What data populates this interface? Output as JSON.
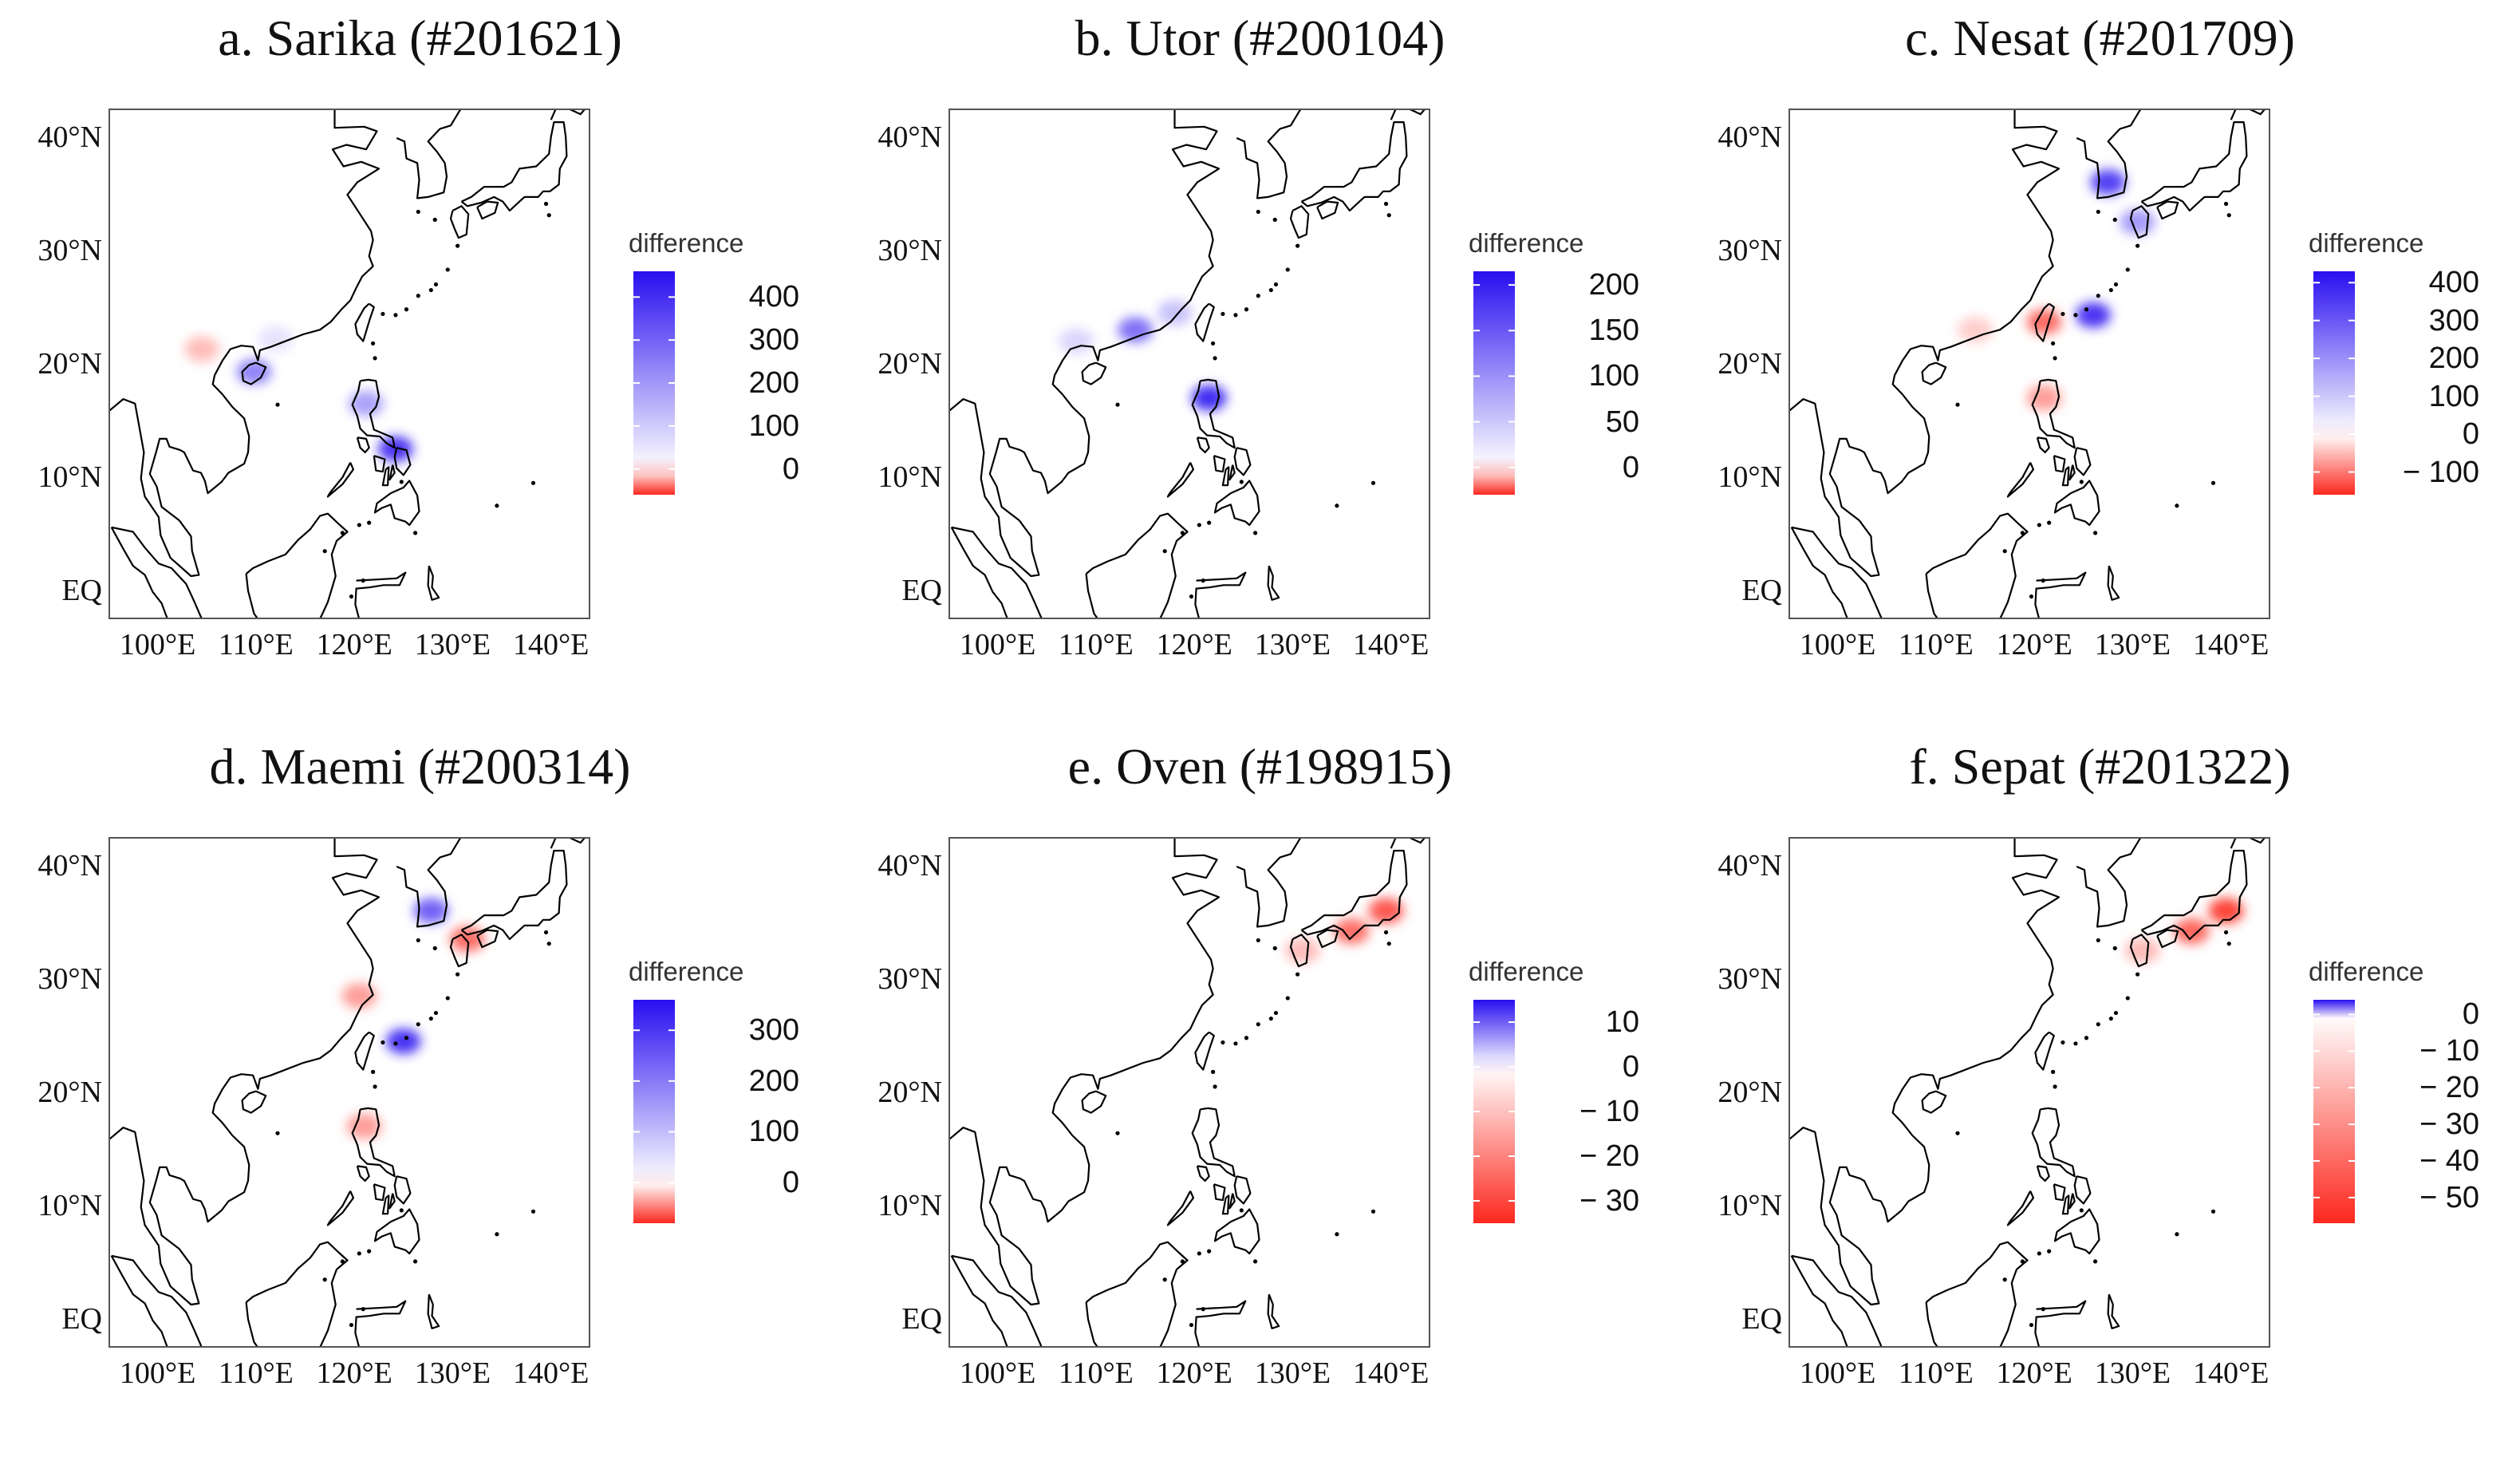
{
  "figure": {
    "panels": [
      {
        "title": "a. Sarika (#201621)",
        "lat_labels": [
          "40°N",
          "30°N",
          "20°N",
          "10°N",
          "EQ"
        ],
        "lon_labels": [
          "100°E",
          "110°E",
          "120°E",
          "130°E",
          "140°E"
        ],
        "legend": {
          "title": "difference",
          "ticks": [
            "400",
            "300",
            "200",
            "100",
            "0"
          ],
          "scale": {
            "min": -60,
            "max": 460
          },
          "tick_values": [
            400,
            300,
            200,
            100,
            0
          ]
        },
        "shading": [
          {
            "region": "south-china-coast",
            "lon": 112,
            "lat": 22.2,
            "value": 60
          },
          {
            "region": "hainan",
            "lon": 109.8,
            "lat": 19.3,
            "value": 260
          },
          {
            "region": "northern-vietnam",
            "lon": 104.5,
            "lat": 21.3,
            "value": -20
          },
          {
            "region": "luzon",
            "lon": 121.2,
            "lat": 16.5,
            "value": 200
          },
          {
            "region": "eastern-visayas",
            "lon": 124.2,
            "lat": 12.5,
            "value": 430
          }
        ]
      },
      {
        "title": "b. Utor (#200104)",
        "lat_labels": [
          "40°N",
          "30°N",
          "20°N",
          "10°N",
          "EQ"
        ],
        "lon_labels": [
          "100°E",
          "110°E",
          "120°E",
          "130°E",
          "140°E"
        ],
        "legend": {
          "title": "difference",
          "ticks": [
            "200",
            "150",
            "100",
            "50",
            "0"
          ],
          "scale": {
            "min": -30,
            "max": 215
          },
          "tick_values": [
            200,
            150,
            100,
            50,
            0
          ]
        },
        "shading": [
          {
            "region": "guangdong-coast",
            "lon": 114,
            "lat": 23,
            "value": 140
          },
          {
            "region": "guangxi-coast",
            "lon": 108,
            "lat": 22,
            "value": 40
          },
          {
            "region": "fujian-coast",
            "lon": 118,
            "lat": 24.5,
            "value": 60
          },
          {
            "region": "luzon",
            "lon": 121.5,
            "lat": 17,
            "value": 210
          }
        ]
      },
      {
        "title": "c. Nesat (#201709)",
        "lat_labels": [
          "40°N",
          "30°N",
          "20°N",
          "10°N",
          "EQ"
        ],
        "lon_labels": [
          "100°E",
          "110°E",
          "120°E",
          "130°E",
          "140°E"
        ],
        "legend": {
          "title": "difference",
          "ticks": [
            "400",
            "300",
            "200",
            "100",
            "0",
            "− 100"
          ],
          "scale": {
            "min": -160,
            "max": 430
          },
          "tick_values": [
            400,
            300,
            200,
            100,
            0,
            -100
          ]
        },
        "shading": [
          {
            "region": "korea",
            "lon": 127.5,
            "lat": 36,
            "value": 380
          },
          {
            "region": "kyushu",
            "lon": 130.5,
            "lat": 32.5,
            "value": 200
          },
          {
            "region": "china-coast",
            "lon": 114,
            "lat": 23,
            "value": -40
          },
          {
            "region": "taiwan",
            "lon": 121,
            "lat": 23.7,
            "value": -120
          },
          {
            "region": "luzon",
            "lon": 121,
            "lat": 17,
            "value": -80
          },
          {
            "region": "ryukyu",
            "lon": 126,
            "lat": 24.3,
            "value": 400
          }
        ]
      },
      {
        "title": "d. Maemi (#200314)",
        "lat_labels": [
          "40°N",
          "30°N",
          "20°N",
          "10°N",
          "EQ"
        ],
        "lon_labels": [
          "100°E",
          "110°E",
          "120°E",
          "130°E",
          "140°E"
        ],
        "legend": {
          "title": "difference",
          "ticks": [
            "300",
            "200",
            "100",
            "0"
          ],
          "scale": {
            "min": -80,
            "max": 360
          },
          "tick_values": [
            300,
            200,
            100,
            0
          ]
        },
        "shading": [
          {
            "region": "korea",
            "lon": 127.8,
            "lat": 36,
            "value": 260
          },
          {
            "region": "kyushu",
            "lon": 131.5,
            "lat": 33.5,
            "value": -60
          },
          {
            "region": "zhejiang-coast",
            "lon": 120.5,
            "lat": 28.5,
            "value": -40
          },
          {
            "region": "ryukyu",
            "lon": 125,
            "lat": 24.5,
            "value": 340
          },
          {
            "region": "luzon",
            "lon": 121,
            "lat": 17,
            "value": -40
          }
        ]
      },
      {
        "title": "e. Oven (#198915)",
        "lat_labels": [
          "40°N",
          "30°N",
          "20°N",
          "10°N",
          "EQ"
        ],
        "lon_labels": [
          "100°E",
          "110°E",
          "120°E",
          "130°E",
          "140°E"
        ],
        "legend": {
          "title": "difference",
          "ticks": [
            "10",
            "0",
            "− 10",
            "− 20",
            "− 30"
          ],
          "scale": {
            "min": -35,
            "max": 15
          },
          "tick_values": [
            10,
            0,
            -10,
            -20,
            -30
          ]
        },
        "shading": [
          {
            "region": "honshu-south",
            "lon": 136,
            "lat": 34.2,
            "value": -26
          },
          {
            "region": "honshu-east",
            "lon": 139.5,
            "lat": 36,
            "value": -30
          },
          {
            "region": "kyushu",
            "lon": 131,
            "lat": 32.5,
            "value": -12
          }
        ]
      },
      {
        "title": "f. Sepat (#201322)",
        "lat_labels": [
          "40°N",
          "30°N",
          "20°N",
          "10°N",
          "EQ"
        ],
        "lon_labels": [
          "100°E",
          "110°E",
          "120°E",
          "130°E",
          "140°E"
        ],
        "legend": {
          "title": "difference",
          "ticks": [
            "0",
            "− 10",
            "− 20",
            "− 30",
            "− 40",
            "− 50"
          ],
          "scale": {
            "min": -57,
            "max": 4
          },
          "tick_values": [
            0,
            -10,
            -20,
            -30,
            -40,
            -50
          ]
        },
        "shading": [
          {
            "region": "honshu-south",
            "lon": 136,
            "lat": 34.2,
            "value": -45
          },
          {
            "region": "honshu-east",
            "lon": 139.5,
            "lat": 36,
            "value": -55
          },
          {
            "region": "kyushu",
            "lon": 131,
            "lat": 32.5,
            "value": -20
          }
        ]
      }
    ]
  }
}
